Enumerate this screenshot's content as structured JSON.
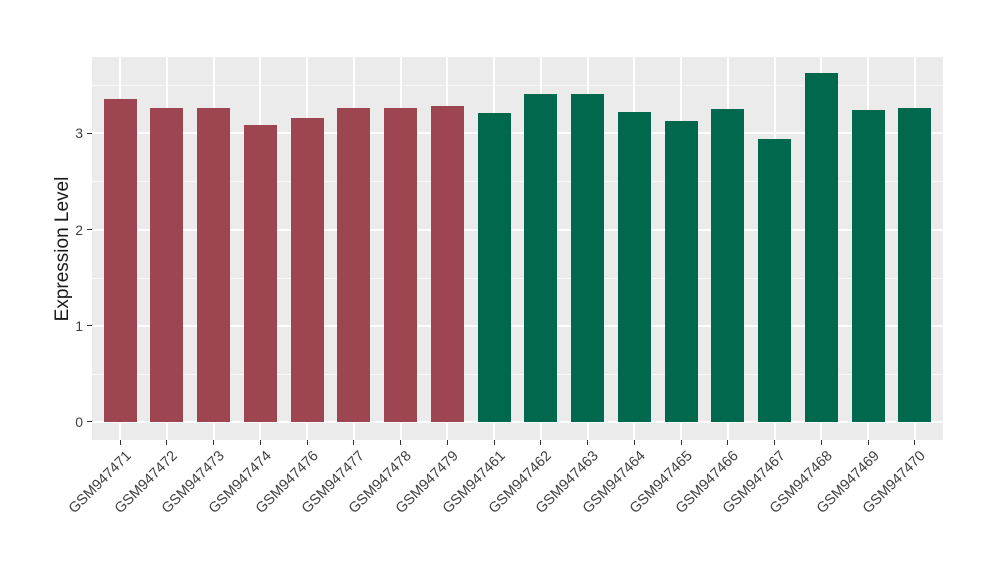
{
  "chart_data": {
    "type": "bar",
    "title": "",
    "xlabel": "",
    "ylabel": "Expression Level",
    "legend_position": "none",
    "panel_background": "#EBEBEB",
    "gridline_color": "#FFFFFF",
    "axis_text_color": "#404040",
    "bar_color_red": "#9E4552",
    "bar_color_green": "#00694D",
    "y_axis": {
      "tick_labels": [
        "0",
        "1",
        "2",
        "3"
      ],
      "ticks": [
        0,
        1,
        2,
        3
      ],
      "minor_ticks": [
        0.5,
        1.5,
        2.5,
        3.5
      ],
      "ylim": [
        -0.19,
        3.79
      ]
    },
    "categories": [
      "GSM947471",
      "GSM947472",
      "GSM947473",
      "GSM947474",
      "GSM947476",
      "GSM947477",
      "GSM947478",
      "GSM947479",
      "GSM947461",
      "GSM947462",
      "GSM947463",
      "GSM947464",
      "GSM947465",
      "GSM947466",
      "GSM947467",
      "GSM947468",
      "GSM947469",
      "GSM947470"
    ],
    "values": [
      3.36,
      3.27,
      3.26,
      3.09,
      3.16,
      3.26,
      3.27,
      3.29,
      3.21,
      3.41,
      3.41,
      3.22,
      3.13,
      3.25,
      2.94,
      3.63,
      3.24,
      3.26
    ],
    "bar_colors": [
      "#9E4552",
      "#9E4552",
      "#9E4552",
      "#9E4552",
      "#9E4552",
      "#9E4552",
      "#9E4552",
      "#9E4552",
      "#00694D",
      "#00694D",
      "#00694D",
      "#00694D",
      "#00694D",
      "#00694D",
      "#00694D",
      "#00694D",
      "#00694D",
      "#00694D"
    ]
  }
}
